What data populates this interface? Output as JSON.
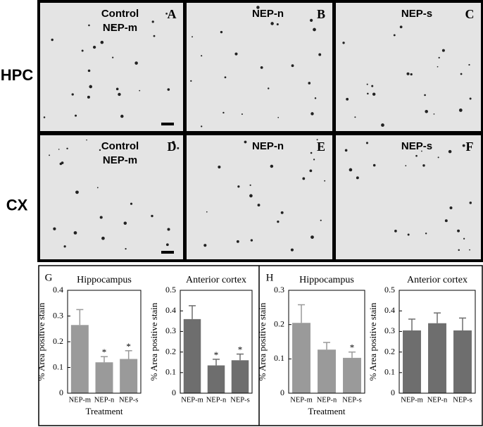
{
  "figure": {
    "rows": [
      "HPC",
      "CX"
    ],
    "panels": [
      {
        "letter": "A",
        "lines": [
          "Control",
          "NEP-m"
        ]
      },
      {
        "letter": "B",
        "lines": [
          "NEP-n"
        ]
      },
      {
        "letter": "C",
        "lines": [
          "NEP-s"
        ]
      },
      {
        "letter": "D",
        "lines": [
          "Control",
          "NEP-m"
        ]
      },
      {
        "letter": "E",
        "lines": [
          "NEP-n"
        ]
      },
      {
        "letter": "F",
        "lines": [
          "NEP-s"
        ]
      }
    ]
  },
  "chart_data": [
    {
      "type": "bar",
      "panel": "G",
      "title": "Hippocampus",
      "y_label": "% Area positive stain",
      "x_label": "Treatment",
      "categories": [
        "NEP-m",
        "NEP-n",
        "NEP-s"
      ],
      "values": [
        0.265,
        0.12,
        0.133
      ],
      "errors": [
        0.06,
        0.022,
        0.032
      ],
      "color": "#9a9a9a",
      "ylim": [
        0,
        0.4
      ],
      "yticks": [
        0,
        0.1,
        0.2,
        0.3,
        0.4
      ],
      "significance": [
        {
          "index": 1,
          "label": "*"
        },
        {
          "index": 2,
          "label": "*"
        }
      ]
    },
    {
      "type": "bar",
      "title": "Anterior cortex",
      "y_label": "% Area positive stain",
      "categories": [
        "NEP-m",
        "NEP-n",
        "NEP-s"
      ],
      "values": [
        0.36,
        0.135,
        0.16
      ],
      "errors": [
        0.065,
        0.03,
        0.03
      ],
      "color": "#6e6e6e",
      "ylim": [
        0,
        0.5
      ],
      "yticks": [
        0,
        0.1,
        0.2,
        0.3,
        0.4,
        0.5
      ],
      "significance": [
        {
          "index": 1,
          "label": "*"
        },
        {
          "index": 2,
          "label": "*"
        }
      ]
    },
    {
      "type": "bar",
      "panel": "H",
      "title": "Hippocampus",
      "y_label": "% Area positive stain",
      "x_label": "Treatment",
      "categories": [
        "NEP-m",
        "NEP-n",
        "NEP-s"
      ],
      "values": [
        0.205,
        0.127,
        0.103
      ],
      "errors": [
        0.053,
        0.021,
        0.017
      ],
      "color": "#9a9a9a",
      "ylim": [
        0,
        0.3
      ],
      "yticks": [
        0,
        0.1,
        0.2,
        0.3
      ],
      "significance": [
        {
          "index": 2,
          "label": "*"
        }
      ]
    },
    {
      "type": "bar",
      "title": "Anterior cortex",
      "y_label": "% Area positive stain",
      "categories": [
        "NEP-m",
        "NEP-n",
        "NEP-s"
      ],
      "values": [
        0.305,
        0.34,
        0.305
      ],
      "errors": [
        0.055,
        0.05,
        0.06
      ],
      "color": "#6e6e6e",
      "ylim": [
        0,
        0.5
      ],
      "yticks": [
        0,
        0.1,
        0.2,
        0.3,
        0.4,
        0.5
      ]
    }
  ]
}
